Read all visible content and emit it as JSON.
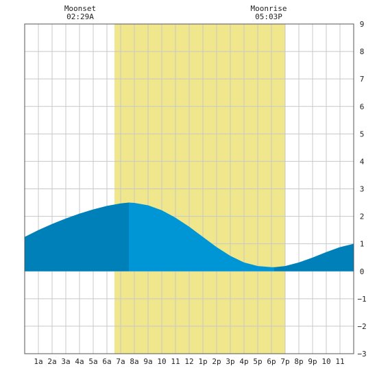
{
  "chart_data": {
    "type": "area",
    "x_unit": "hour of day",
    "xlim": [
      0,
      24
    ],
    "ylim": [
      -3,
      9
    ],
    "grid": true,
    "x_tick_labels": [
      {
        "x": 1,
        "label": "1a"
      },
      {
        "x": 2,
        "label": "2a"
      },
      {
        "x": 3,
        "label": "3a"
      },
      {
        "x": 4,
        "label": "4a"
      },
      {
        "x": 5,
        "label": "5a"
      },
      {
        "x": 6,
        "label": "6a"
      },
      {
        "x": 7,
        "label": "7a"
      },
      {
        "x": 8,
        "label": "8a"
      },
      {
        "x": 9,
        "label": "9a"
      },
      {
        "x": 10,
        "label": "10"
      },
      {
        "x": 11,
        "label": "11"
      },
      {
        "x": 12,
        "label": "12"
      },
      {
        "x": 13,
        "label": "1p"
      },
      {
        "x": 14,
        "label": "2p"
      },
      {
        "x": 15,
        "label": "3p"
      },
      {
        "x": 16,
        "label": "4p"
      },
      {
        "x": 17,
        "label": "5p"
      },
      {
        "x": 18,
        "label": "6p"
      },
      {
        "x": 19,
        "label": "7p"
      },
      {
        "x": 20,
        "label": "8p"
      },
      {
        "x": 21,
        "label": "9p"
      },
      {
        "x": 22,
        "label": "10"
      },
      {
        "x": 23,
        "label": "11"
      }
    ],
    "y_ticks": [
      -3,
      -2,
      -1,
      0,
      1,
      2,
      3,
      4,
      5,
      6,
      7,
      8,
      9
    ],
    "daylight": {
      "start": 6.55,
      "end": 19.0
    },
    "series": [
      {
        "color": "#0096d6",
        "x": [
          0,
          1,
          2,
          3,
          4,
          5,
          6,
          7,
          7.6,
          8,
          9,
          10,
          11,
          12,
          13,
          14,
          15,
          16,
          17,
          18,
          18.25,
          19,
          20,
          21,
          22,
          23,
          24
        ],
        "y": [
          1.25,
          1.5,
          1.72,
          1.92,
          2.1,
          2.25,
          2.38,
          2.47,
          2.5,
          2.49,
          2.4,
          2.22,
          1.95,
          1.62,
          1.25,
          0.88,
          0.56,
          0.32,
          0.19,
          0.15,
          0.15,
          0.19,
          0.32,
          0.5,
          0.7,
          0.88,
          1.0
        ]
      }
    ],
    "shade_before_daylight": "#0080b8",
    "shade_daylight": "#0096d6",
    "shade_after_daylight": "#0080b8",
    "daylight_color": "#f0e68c",
    "annotations": [
      {
        "x": 4.05,
        "line1": "Moonset",
        "line2": "02:29A"
      },
      {
        "x": 17.8,
        "line1": "Moonrise",
        "line2": "05:03P"
      }
    ]
  }
}
